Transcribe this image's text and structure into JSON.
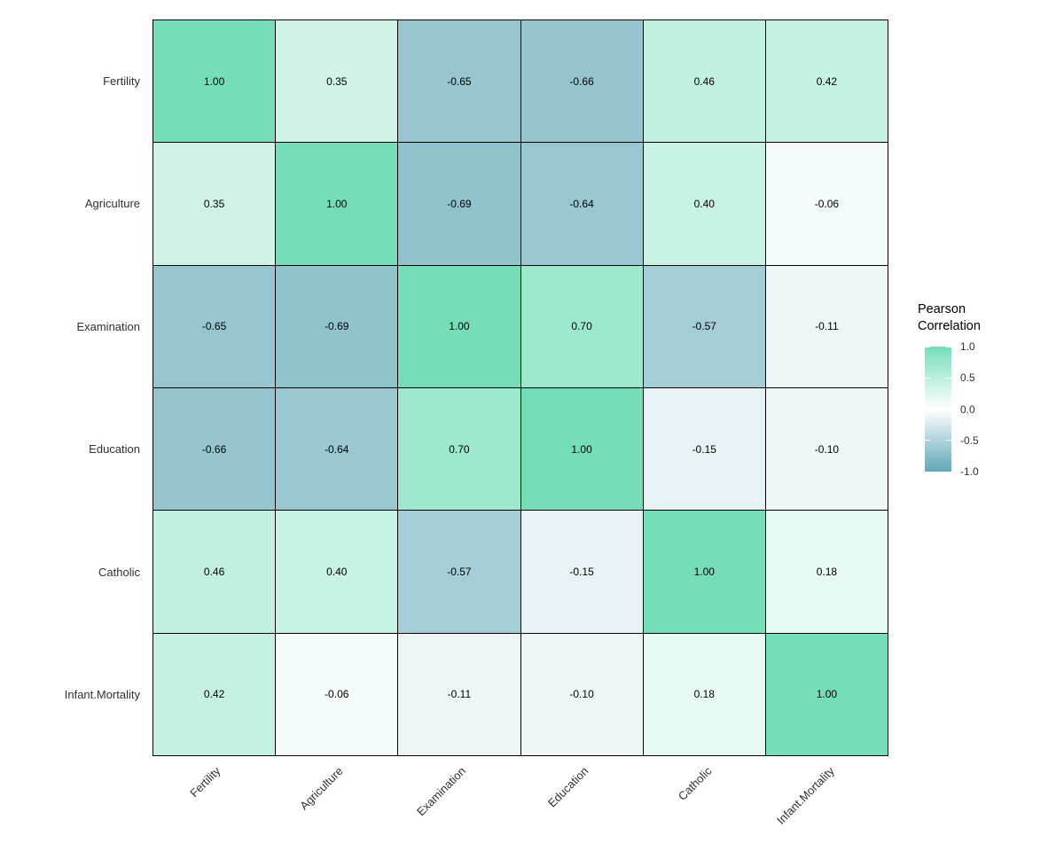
{
  "chart_data": {
    "type": "heatmap",
    "title": "",
    "variables": [
      "Fertility",
      "Agriculture",
      "Examination",
      "Education",
      "Catholic",
      "Infant.Mortality"
    ],
    "matrix": [
      [
        1.0,
        0.35,
        -0.65,
        -0.66,
        0.46,
        0.42
      ],
      [
        0.35,
        1.0,
        -0.69,
        -0.64,
        0.4,
        -0.06
      ],
      [
        -0.65,
        -0.69,
        1.0,
        0.7,
        -0.57,
        -0.11
      ],
      [
        -0.66,
        -0.64,
        0.7,
        1.0,
        -0.15,
        -0.1
      ],
      [
        0.46,
        0.4,
        -0.57,
        -0.15,
        1.0,
        0.18
      ],
      [
        0.42,
        -0.06,
        -0.11,
        -0.1,
        0.18,
        1.0
      ]
    ],
    "cell_value_decimals": 2,
    "value_range": [
      -1,
      1
    ],
    "x_label_angle_deg": 45,
    "legend": {
      "title_lines": [
        "Pearson",
        "Correlation"
      ],
      "tick_labels": [
        "1.0",
        "0.5",
        "0.0",
        "-0.5",
        "-1.0"
      ]
    },
    "colors": {
      "high": "#75DEB9",
      "mid": "#FFFFFF",
      "low": "#5FA8B8",
      "grid_line": "#000000",
      "cell_text": "#000000",
      "axis_text": "#303030"
    }
  }
}
